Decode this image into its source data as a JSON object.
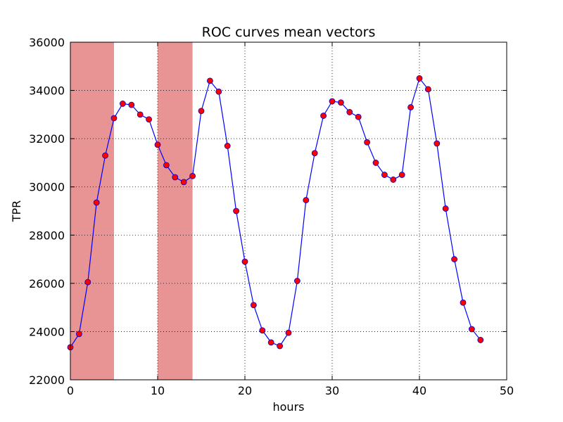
{
  "chart_data": {
    "type": "line",
    "title": "ROC curves mean vectors",
    "xlabel": "hours",
    "ylabel": "TPR",
    "xlim": [
      0,
      50
    ],
    "ylim": [
      22000,
      36000
    ],
    "xticks": [
      0,
      10,
      20,
      30,
      40,
      50
    ],
    "yticks": [
      22000,
      24000,
      26000,
      28000,
      30000,
      32000,
      34000,
      36000
    ],
    "xtick_labels": [
      "0",
      "10",
      "20",
      "30",
      "40",
      "50"
    ],
    "ytick_labels": [
      "22000",
      "24000",
      "26000",
      "28000",
      "30000",
      "32000",
      "34000",
      "36000"
    ],
    "grid": true,
    "shaded_regions": [
      {
        "x_start": 0,
        "x_end": 5,
        "color": "#e99494"
      },
      {
        "x_start": 10,
        "x_end": 14,
        "color": "#e99494"
      }
    ],
    "series": [
      {
        "line_color": "#0000ff",
        "marker_face": "#ff0000",
        "marker_edge": "#0000cc",
        "x": [
          0,
          1,
          2,
          3,
          4,
          5,
          6,
          7,
          8,
          9,
          10,
          11,
          12,
          13,
          14,
          15,
          16,
          17,
          18,
          19,
          20,
          21,
          22,
          23,
          24,
          25,
          26,
          27,
          28,
          29,
          30,
          31,
          32,
          33,
          34,
          35,
          36,
          37,
          38,
          39,
          40,
          41,
          42,
          43,
          44,
          45,
          46,
          47
        ],
        "values": [
          23350,
          23900,
          26050,
          29350,
          31300,
          32850,
          33450,
          33400,
          33000,
          32800,
          31750,
          30900,
          30400,
          30200,
          30450,
          33150,
          34400,
          33950,
          31700,
          29000,
          26900,
          25100,
          24050,
          23550,
          23400,
          23950,
          26100,
          29450,
          31400,
          32950,
          33550,
          33500,
          33100,
          32900,
          31850,
          31000,
          30500,
          30300,
          30500,
          33300,
          34500,
          34050,
          31800,
          29100,
          27000,
          25200,
          24100,
          23650
        ]
      }
    ]
  }
}
